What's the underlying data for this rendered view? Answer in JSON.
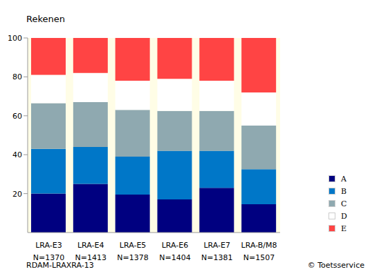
{
  "chart_data": {
    "type": "bar",
    "title": "Rekenen",
    "categories": [
      "LRA-E3",
      "LRA-E4",
      "LRA-E5",
      "LRA-E6",
      "LRA-E7",
      "LRA-B/M8"
    ],
    "category_notes": [
      "N=1370",
      "N=1413",
      "N=1378",
      "N=1404",
      "N=1381",
      "N=1507"
    ],
    "series": [
      {
        "name": "A",
        "color": "#000080",
        "values": [
          20,
          25,
          19.5,
          17,
          23,
          14.5
        ]
      },
      {
        "name": "B",
        "color": "#0077c8",
        "values": [
          23,
          19,
          19.5,
          25,
          19,
          18
        ]
      },
      {
        "name": "C",
        "color": "#8fa9b0",
        "values": [
          23.5,
          23,
          24,
          20.5,
          20.5,
          22.5
        ]
      },
      {
        "name": "D",
        "color": "#ffffff",
        "values": [
          14.5,
          15,
          15,
          16.5,
          15.5,
          17
        ]
      },
      {
        "name": "E",
        "color": "#ff4444",
        "values": [
          19,
          18,
          22,
          21,
          22,
          28
        ]
      }
    ],
    "ylim": [
      0,
      100
    ],
    "yticks": [
      20,
      40,
      60,
      80,
      100
    ],
    "stacked": true,
    "grid": false,
    "legend": "lower right",
    "footer_left": "RDAM-LRAXRA-13",
    "footer_right": "© Toetsservice"
  }
}
